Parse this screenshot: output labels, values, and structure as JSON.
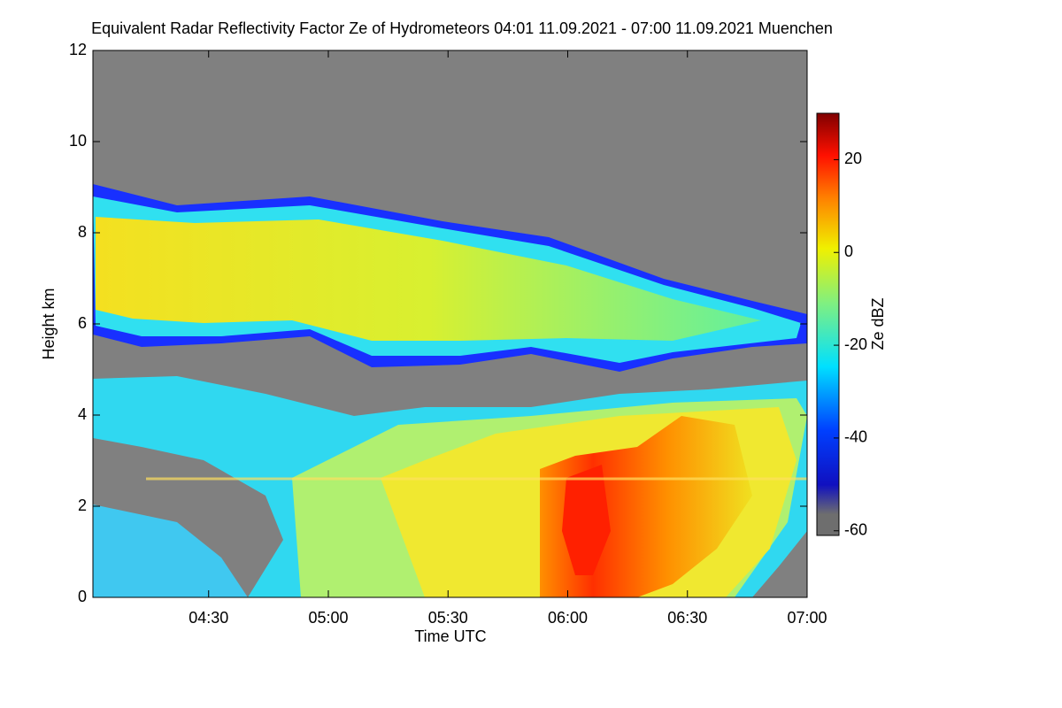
{
  "chart_data": {
    "type": "heatmap",
    "title": "Equivalent Radar Reflectivity Factor Ze of Hydrometeors   04:01 11.09.2021 - 07:00 11.09.2021 Muenchen",
    "x_label": "Time UTC",
    "y_label": "Height km",
    "colorbar_label": "Ze dBZ",
    "xlim": [
      241,
      420
    ],
    "xticks": [
      {
        "value": 270,
        "label": "04:30"
      },
      {
        "value": 300,
        "label": "05:00"
      },
      {
        "value": 330,
        "label": "05:30"
      },
      {
        "value": 360,
        "label": "06:00"
      },
      {
        "value": 390,
        "label": "06:30"
      },
      {
        "value": 420,
        "label": "07:00"
      }
    ],
    "ylim": [
      0,
      12
    ],
    "yticks": [
      0,
      2,
      4,
      6,
      8,
      10,
      12
    ],
    "clim": [
      -61,
      30
    ],
    "cticks": [
      -60,
      -40,
      -20,
      0,
      20
    ]
  }
}
